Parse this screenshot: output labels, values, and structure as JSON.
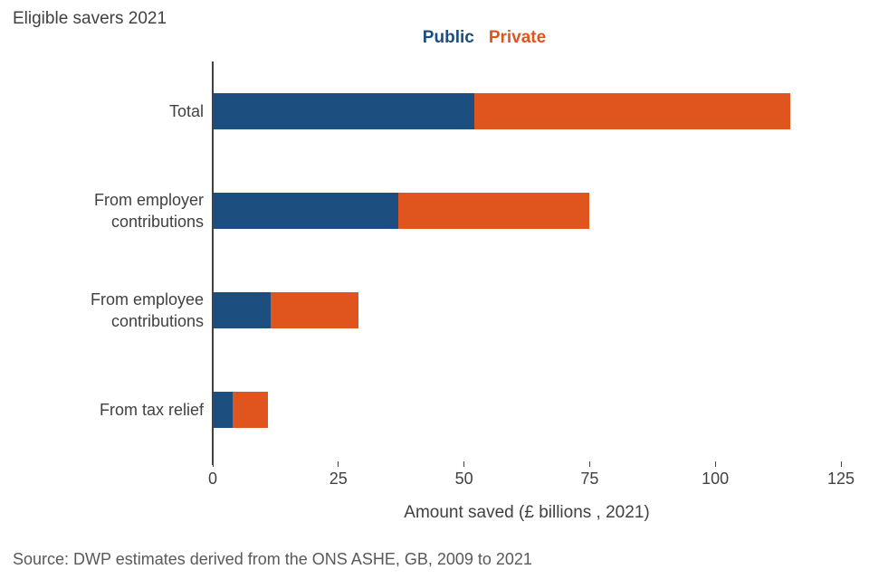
{
  "title": "Eligible savers 2021",
  "legend": [
    {
      "label": "Public",
      "color": "#1c4e80"
    },
    {
      "label": "Private",
      "color": "#e0541e"
    }
  ],
  "chart_data": {
    "type": "bar",
    "orientation": "horizontal",
    "stacked": true,
    "title": "Eligible savers 2021",
    "categories": [
      "Total",
      "From employer contributions",
      "From employee contributions",
      "From tax relief"
    ],
    "series": [
      {
        "name": "Public",
        "color": "#1c4e80",
        "values": [
          52,
          37,
          11.5,
          4
        ]
      },
      {
        "name": "Private",
        "color": "#e0541e",
        "values": [
          63,
          38,
          17.5,
          7
        ]
      }
    ],
    "totals": [
      115,
      75,
      29,
      11
    ],
    "xlabel": "Amount saved (£ billions , 2021)",
    "xlim": [
      0,
      125
    ],
    "xticks": [
      0,
      25,
      50,
      75,
      100,
      125
    ],
    "legend_position": "top",
    "grid": false
  },
  "source": "Source: DWP estimates derived from the ONS ASHE, GB, 2009 to 2021"
}
